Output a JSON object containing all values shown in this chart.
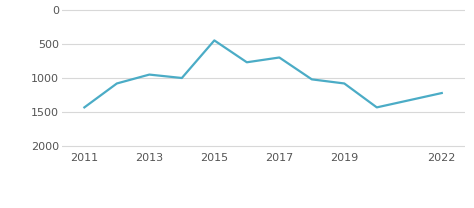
{
  "x": [
    2011,
    2012,
    2013,
    2014,
    2015,
    2016,
    2017,
    2018,
    2019,
    2020,
    2022
  ],
  "y": [
    1430,
    1080,
    950,
    1000,
    450,
    770,
    700,
    1020,
    1080,
    1430,
    1220
  ],
  "line_color": "#4bacc6",
  "line_width": 1.6,
  "yticks": [
    0,
    500,
    1000,
    1500,
    2000
  ],
  "xticks": [
    2011,
    2013,
    2015,
    2017,
    2019,
    2022
  ],
  "ylim": [
    2050,
    -50
  ],
  "xlim": [
    2010.3,
    2022.7
  ],
  "bg_color": "#ffffff",
  "grid_color": "#d8d8d8",
  "tick_color": "#555555",
  "tick_fontsize": 8.0,
  "legend_fontsize": 7.8
}
